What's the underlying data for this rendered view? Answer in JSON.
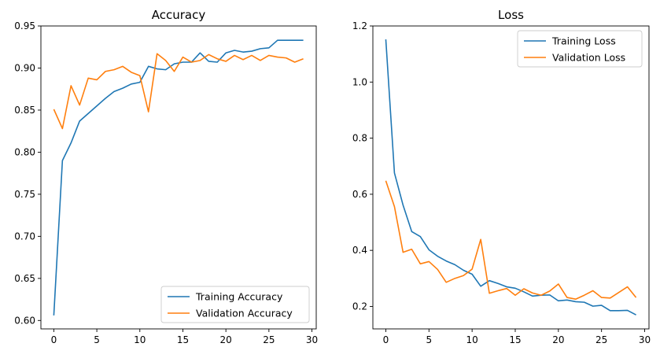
{
  "chart_data": [
    {
      "type": "line",
      "title": "Accuracy",
      "xlabel": "",
      "ylabel": "",
      "xlim": [
        -1.5,
        30.5
      ],
      "ylim": [
        0.59,
        0.95
      ],
      "x_ticks": [
        0,
        5,
        10,
        15,
        20,
        25,
        30
      ],
      "y_ticks": [
        0.6,
        0.65,
        0.7,
        0.75,
        0.8,
        0.85,
        0.9,
        0.95
      ],
      "y_tick_labels": [
        "0.60",
        "0.65",
        "0.70",
        "0.75",
        "0.80",
        "0.85",
        "0.90",
        "0.95"
      ],
      "grid": false,
      "legend_position": "lower-right",
      "x": [
        0,
        1,
        2,
        3,
        4,
        5,
        6,
        7,
        8,
        9,
        10,
        11,
        12,
        13,
        14,
        15,
        16,
        17,
        18,
        19,
        20,
        21,
        22,
        23,
        24,
        25,
        26,
        27,
        28,
        29
      ],
      "series": [
        {
          "name": "Training Accuracy",
          "color": "#1f77b4",
          "values": [
            0.606,
            0.79,
            0.811,
            0.837,
            0.846,
            0.855,
            0.864,
            0.872,
            0.876,
            0.881,
            0.883,
            0.902,
            0.899,
            0.898,
            0.905,
            0.907,
            0.907,
            0.918,
            0.908,
            0.907,
            0.918,
            0.921,
            0.919,
            0.92,
            0.923,
            0.924,
            0.933,
            0.933,
            0.933,
            0.933
          ]
        },
        {
          "name": "Validation Accuracy",
          "color": "#ff7f0e",
          "values": [
            0.851,
            0.828,
            0.879,
            0.856,
            0.888,
            0.886,
            0.896,
            0.898,
            0.902,
            0.895,
            0.891,
            0.848,
            0.917,
            0.909,
            0.896,
            0.913,
            0.907,
            0.909,
            0.916,
            0.911,
            0.908,
            0.915,
            0.91,
            0.915,
            0.909,
            0.915,
            0.913,
            0.912,
            0.907,
            0.911
          ]
        }
      ]
    },
    {
      "type": "line",
      "title": "Loss",
      "xlabel": "",
      "ylabel": "",
      "xlim": [
        -1.5,
        30.5
      ],
      "ylim": [
        0.12,
        1.2
      ],
      "x_ticks": [
        0,
        5,
        10,
        15,
        20,
        25,
        30
      ],
      "y_ticks": [
        0.2,
        0.4,
        0.6,
        0.8,
        1.0,
        1.2
      ],
      "y_tick_labels": [
        "0.2",
        "0.4",
        "0.6",
        "0.8",
        "1.0",
        "1.2"
      ],
      "grid": false,
      "legend_position": "upper-right",
      "x": [
        0,
        1,
        2,
        3,
        4,
        5,
        6,
        7,
        8,
        9,
        10,
        11,
        12,
        13,
        14,
        15,
        16,
        17,
        18,
        19,
        20,
        21,
        22,
        23,
        24,
        25,
        26,
        27,
        28,
        29
      ],
      "series": [
        {
          "name": "Training Loss",
          "color": "#1f77b4",
          "values": [
            1.152,
            0.676,
            0.561,
            0.467,
            0.449,
            0.402,
            0.379,
            0.362,
            0.349,
            0.329,
            0.315,
            0.272,
            0.292,
            0.282,
            0.27,
            0.265,
            0.252,
            0.237,
            0.24,
            0.241,
            0.22,
            0.223,
            0.217,
            0.215,
            0.201,
            0.204,
            0.185,
            0.185,
            0.186,
            0.17
          ]
        },
        {
          "name": "Validation Loss",
          "color": "#ff7f0e",
          "values": [
            0.648,
            0.556,
            0.393,
            0.404,
            0.352,
            0.36,
            0.332,
            0.286,
            0.3,
            0.31,
            0.333,
            0.439,
            0.247,
            0.256,
            0.264,
            0.24,
            0.263,
            0.248,
            0.24,
            0.255,
            0.28,
            0.232,
            0.226,
            0.24,
            0.256,
            0.232,
            0.23,
            0.25,
            0.27,
            0.232
          ]
        }
      ]
    }
  ]
}
